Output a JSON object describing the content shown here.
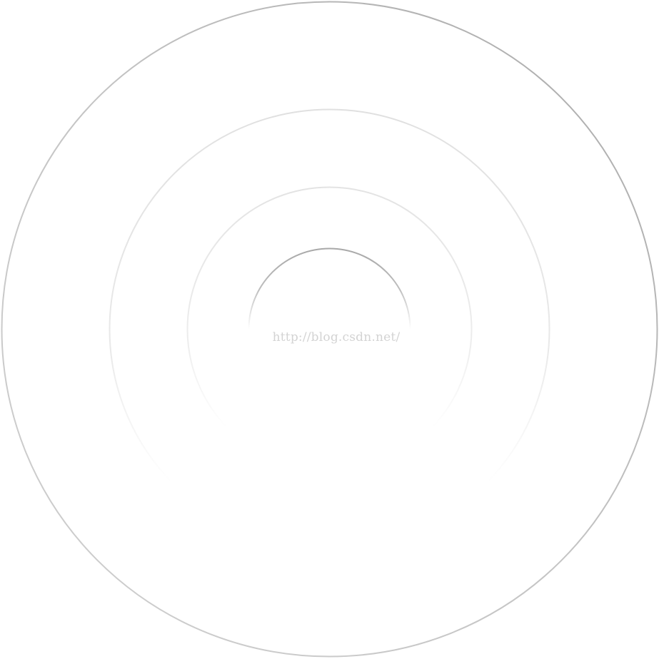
{
  "watermark": {
    "text": "http://blog.csdn.net/"
  },
  "colors": {
    "background": "#ffffff",
    "ring_dark": "#b0b0b0",
    "ring_light": "#e6e6e6",
    "watermark": "#d3d3d3"
  },
  "rings": [
    {
      "name": "outer-ring"
    },
    {
      "name": "second-ring"
    },
    {
      "name": "third-ring"
    },
    {
      "name": "inner-arc"
    }
  ]
}
